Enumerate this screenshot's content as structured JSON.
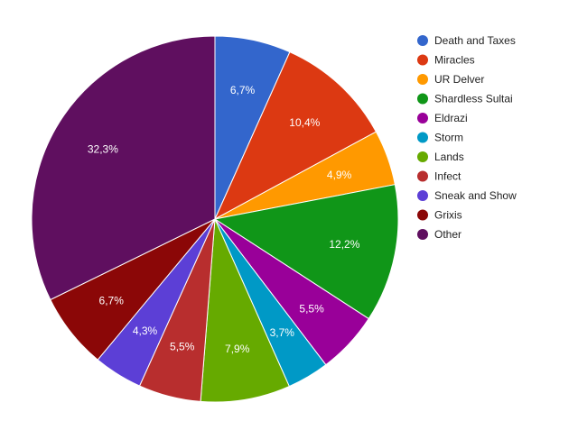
{
  "chart_data": {
    "type": "pie",
    "title": "",
    "legend_position": "right",
    "slices": [
      {
        "name": "Death and Taxes",
        "value": 6.7,
        "label": "6,7%",
        "color": "#3366cc"
      },
      {
        "name": "Miracles",
        "value": 10.4,
        "label": "10,4%",
        "color": "#dc3912"
      },
      {
        "name": "UR Delver",
        "value": 4.9,
        "label": "4,9%",
        "color": "#ff9900"
      },
      {
        "name": "Shardless Sultai",
        "value": 12.2,
        "label": "12,2%",
        "color": "#109618"
      },
      {
        "name": "Eldrazi",
        "value": 5.5,
        "label": "5,5%",
        "color": "#990099"
      },
      {
        "name": "Storm",
        "value": 3.7,
        "label": "3,7%",
        "color": "#0099c6"
      },
      {
        "name": "Lands",
        "value": 7.9,
        "label": "7,9%",
        "color": "#66aa00"
      },
      {
        "name": "Infect",
        "value": 5.5,
        "label": "5,5%",
        "color": "#b82e2e"
      },
      {
        "name": "Sneak and Show",
        "value": 4.3,
        "label": "4,3%",
        "color": "#5c3fd6"
      },
      {
        "name": "Grixis",
        "value": 6.7,
        "label": "6,7%",
        "color": "#8b0707"
      },
      {
        "name": "Other",
        "value": 32.3,
        "label": "32,3%",
        "color": "#5f0f5f"
      }
    ]
  }
}
